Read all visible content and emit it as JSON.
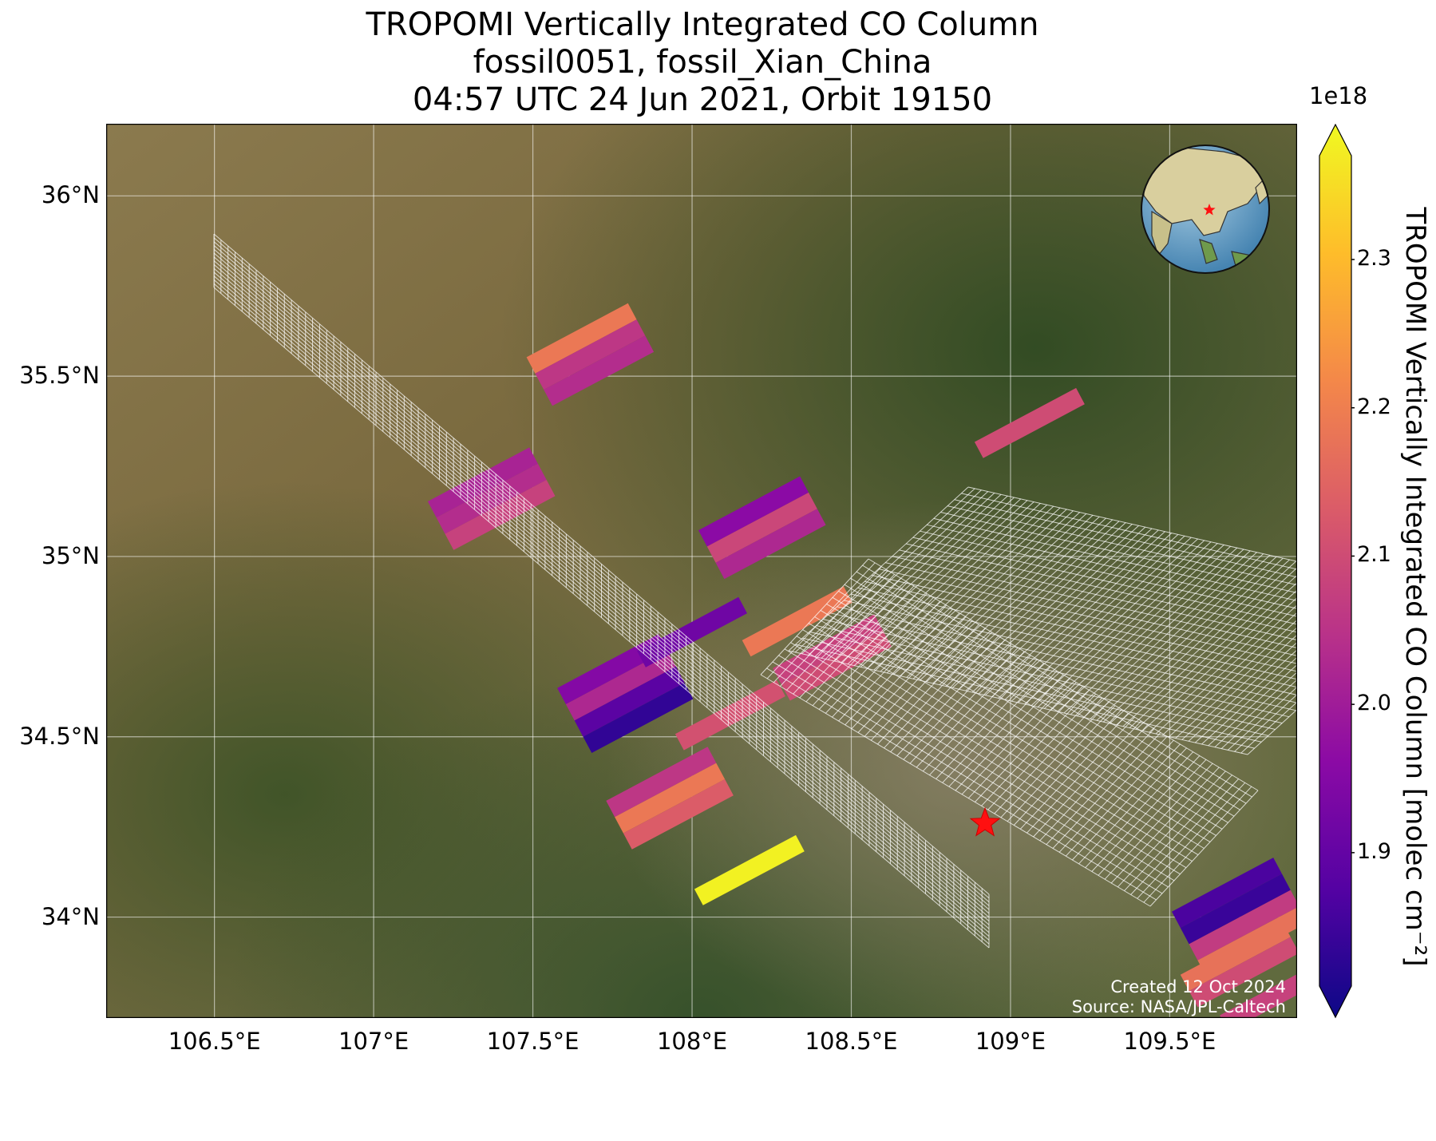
{
  "title_lines": [
    "TROPOMI Vertically Integrated CO Column",
    "fossil0051, fossil_Xian_China",
    "04:57 UTC 24 Jun 2021, Orbit 19150"
  ],
  "lon_ticks": [
    {
      "v": 106.5,
      "label": "106.5°E"
    },
    {
      "v": 107.0,
      "label": "107°E"
    },
    {
      "v": 107.5,
      "label": "107.5°E"
    },
    {
      "v": 108.0,
      "label": "108°E"
    },
    {
      "v": 108.5,
      "label": "108.5°E"
    },
    {
      "v": 109.0,
      "label": "109°E"
    },
    {
      "v": 109.5,
      "label": "109.5°E"
    }
  ],
  "lat_ticks": [
    {
      "v": 36.0,
      "label": "36°N"
    },
    {
      "v": 35.5,
      "label": "35.5°N"
    },
    {
      "v": 35.0,
      "label": "35°N"
    },
    {
      "v": 34.5,
      "label": "34.5°N"
    },
    {
      "v": 34.0,
      "label": "34°N"
    }
  ],
  "extent": {
    "lon_min": 106.16,
    "lon_max": 109.9,
    "lat_min": 33.72,
    "lat_max": 36.2
  },
  "colorbar": {
    "title": "1e18",
    "label": "TROPOMI Vertically Integrated CO Column [molec cm⁻²]",
    "min": 1.81,
    "max": 2.37,
    "ticks": [
      {
        "v": 1.9,
        "label": "1.9"
      },
      {
        "v": 2.0,
        "label": "2.0"
      },
      {
        "v": 2.1,
        "label": "2.1"
      },
      {
        "v": 2.2,
        "label": "2.2"
      },
      {
        "v": 2.3,
        "label": "2.3"
      }
    ],
    "colors": [
      "#0d0887",
      "#5402a3",
      "#8b0aa5",
      "#b93289",
      "#db5c68",
      "#f48849",
      "#febd2a",
      "#f0f921"
    ]
  },
  "target": {
    "name_marker": "red-star",
    "lon": 108.92,
    "lat": 34.26
  },
  "credits": {
    "created": "Created 12 Oct 2024",
    "source": "Source: NASA/JPL-Caltech"
  },
  "soundings": [
    {
      "lon": 107.68,
      "lat": 35.56,
      "v": [
        2.18,
        2.06,
        2.04
      ]
    },
    {
      "lon": 107.37,
      "lat": 35.16,
      "v": [
        2.02,
        2.04,
        2.08
      ]
    },
    {
      "lon": 108.22,
      "lat": 35.08,
      "v": [
        1.97,
        2.09,
        2.03
      ]
    },
    {
      "lon": 108.33,
      "lat": 34.82,
      "v": [
        2.18
      ]
    },
    {
      "lon": 108.44,
      "lat": 34.72,
      "v": [
        2.08,
        2.1
      ]
    },
    {
      "lon": 107.79,
      "lat": 34.62,
      "v": [
        1.96,
        2.03,
        1.9,
        1.85
      ]
    },
    {
      "lon": 108.0,
      "lat": 34.79,
      "v": [
        1.93
      ]
    },
    {
      "lon": 108.12,
      "lat": 34.56,
      "v": [
        2.11
      ]
    },
    {
      "lon": 107.93,
      "lat": 34.33,
      "v": [
        2.06,
        2.18,
        2.13
      ]
    },
    {
      "lon": 108.18,
      "lat": 34.13,
      "v": [
        2.36
      ]
    },
    {
      "lon": 109.06,
      "lat": 35.37,
      "v": [
        2.1
      ]
    },
    {
      "lon": 109.72,
      "lat": 34.0,
      "v": [
        1.88,
        1.86,
        2.07,
        2.17
      ]
    },
    {
      "lon": 109.72,
      "lat": 33.87,
      "v": [
        2.17,
        2.1
      ]
    },
    {
      "lon": 109.83,
      "lat": 33.78,
      "v": [
        2.08
      ]
    }
  ]
}
